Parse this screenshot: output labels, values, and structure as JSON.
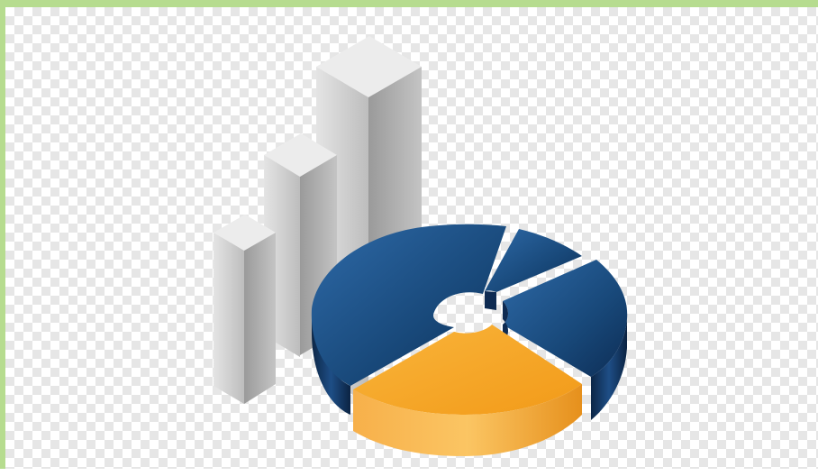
{
  "illustration": {
    "name": "3d-bar-and-pie-chart-clipart",
    "background": "transparent-checkerboard",
    "bars": [
      {
        "name": "short",
        "relative_height": 0.48
      },
      {
        "name": "medium",
        "relative_height": 0.76
      },
      {
        "name": "tall",
        "relative_height": 1.0
      }
    ],
    "pie_slices": [
      {
        "name": "large-slice",
        "color": "#1f4f86",
        "exploded": false
      },
      {
        "name": "small-slice",
        "color": "#1f4f86",
        "exploded": true
      },
      {
        "name": "medium-slice",
        "color": "#1f4f86",
        "exploded": true
      },
      {
        "name": "highlight-slice",
        "color": "#f6a524",
        "exploded": true
      }
    ],
    "colors": {
      "bar_front": "#d4d4d4",
      "bar_side": "#a9a9a9",
      "bar_top": "#ececec",
      "pie_blue": "#1f4f86",
      "pie_blue_dark": "#0e2b52",
      "pie_orange": "#f6a524",
      "pie_orange_dark": "#e08c12",
      "border": "#b6dc8f"
    }
  }
}
